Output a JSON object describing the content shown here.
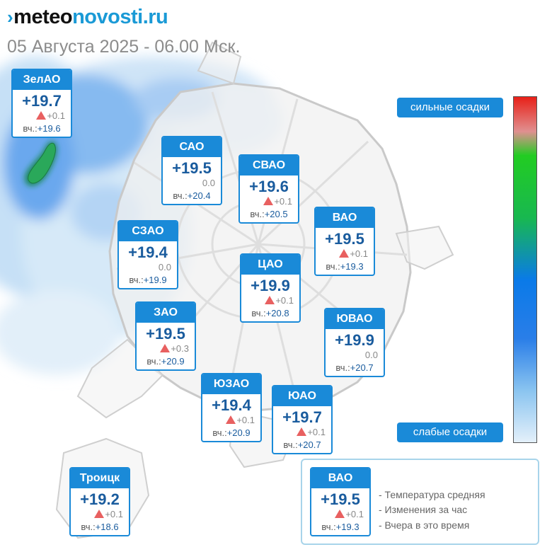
{
  "header": {
    "logo_part1": "meteo",
    "logo_part2": "novosti.ru",
    "datetime": "05 Августа 2025 - 06.00 Мск."
  },
  "districts": [
    {
      "name": "ЗелАО",
      "temp": "+19.7",
      "change": "+0.1",
      "trend": "up",
      "yest_label": "вч.:",
      "yest": "+19.6"
    },
    {
      "name": "САО",
      "temp": "+19.5",
      "change": "0.0",
      "trend": "none",
      "yest_label": "вч.:",
      "yest": "+20.4"
    },
    {
      "name": "СВАО",
      "temp": "+19.6",
      "change": "+0.1",
      "trend": "up",
      "yest_label": "вч.:",
      "yest": "+20.5"
    },
    {
      "name": "ВАО",
      "temp": "+19.5",
      "change": "+0.1",
      "trend": "up",
      "yest_label": "вч.:",
      "yest": "+19.3"
    },
    {
      "name": "СЗАО",
      "temp": "+19.4",
      "change": "0.0",
      "trend": "none",
      "yest_label": "вч.:",
      "yest": "+19.9"
    },
    {
      "name": "ЦАО",
      "temp": "+19.9",
      "change": "+0.1",
      "trend": "up",
      "yest_label": "вч.:",
      "yest": "+20.8"
    },
    {
      "name": "ЗАО",
      "temp": "+19.5",
      "change": "+0.3",
      "trend": "up",
      "yest_label": "вч.:",
      "yest": "+20.9"
    },
    {
      "name": "ЮВАО",
      "temp": "+19.9",
      "change": "0.0",
      "trend": "none",
      "yest_label": "вч.:",
      "yest": "+20.7"
    },
    {
      "name": "ЮЗАО",
      "temp": "+19.4",
      "change": "+0.1",
      "trend": "up",
      "yest_label": "вч.:",
      "yest": "+20.9"
    },
    {
      "name": "ЮАО",
      "temp": "+19.7",
      "change": "+0.1",
      "trend": "up",
      "yest_label": "вч.:",
      "yest": "+20.7"
    },
    {
      "name": "Троицк",
      "temp": "+19.2",
      "change": "+0.1",
      "trend": "up",
      "yest_label": "вч.:",
      "yest": "+18.6"
    }
  ],
  "scale": {
    "top_label": "сильные осадки",
    "bottom_label": "слабые осадки",
    "colors": [
      "#e82018",
      "#22cc22",
      "#0a7ae8",
      "#e4f0fa"
    ]
  },
  "legend": {
    "example": {
      "name": "ВАО",
      "temp": "+19.5",
      "change": "+0.1",
      "trend": "up",
      "yest_label": "вч.:",
      "yest": "+19.3"
    },
    "items": [
      "- Температура средняя",
      "- Изменения за час",
      "- Вчера в это время"
    ]
  },
  "colors": {
    "accent": "#1a8ad8",
    "brand": "#1a9ad6",
    "temp_text": "#1a5c9e",
    "rise_marker": "#e86060"
  }
}
